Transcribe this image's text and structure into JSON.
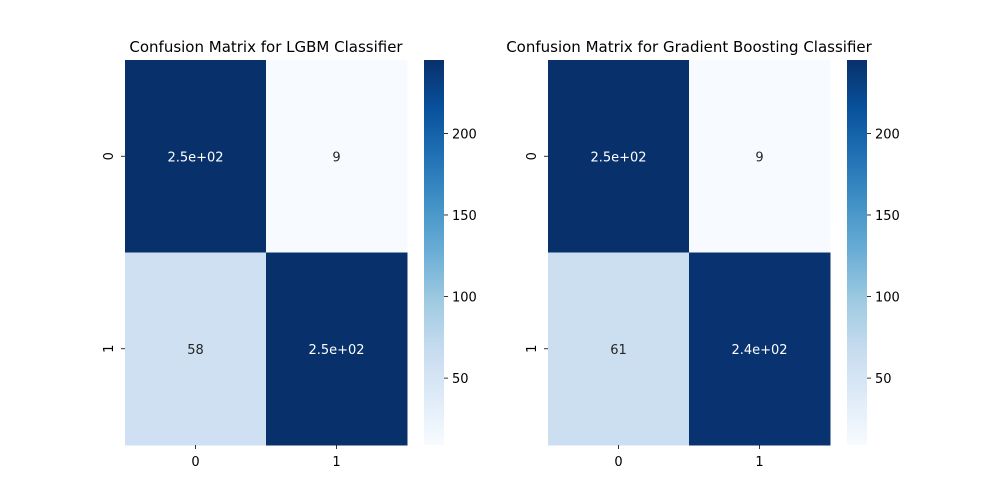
{
  "chart_data": [
    {
      "type": "heatmap",
      "title": "Confusion Matrix for LGBM Classifier",
      "x_tick_labels": [
        "0",
        "1"
      ],
      "y_tick_labels": [
        "0",
        "1"
      ],
      "values": [
        [
          245,
          9
        ],
        [
          58,
          245
        ]
      ],
      "annotations": [
        [
          "2.5e+02",
          "9"
        ],
        [
          "58",
          "2.5e+02"
        ]
      ],
      "colormap": "Blues",
      "colorbar": {
        "range": [
          9,
          245
        ],
        "ticks": [
          50,
          100,
          150,
          200
        ],
        "tick_labels": [
          "50",
          "100",
          "150",
          "200"
        ]
      }
    },
    {
      "type": "heatmap",
      "title": "Confusion Matrix for Gradient Boosting Classifier",
      "x_tick_labels": [
        "0",
        "1"
      ],
      "y_tick_labels": [
        "0",
        "1"
      ],
      "values": [
        [
          245,
          9
        ],
        [
          61,
          242
        ]
      ],
      "annotations": [
        [
          "2.5e+02",
          "9"
        ],
        [
          "61",
          "2.4e+02"
        ]
      ],
      "colormap": "Blues",
      "colorbar": {
        "range": [
          9,
          245
        ],
        "ticks": [
          50,
          100,
          150,
          200
        ],
        "tick_labels": [
          "50",
          "100",
          "150",
          "200"
        ]
      }
    }
  ]
}
